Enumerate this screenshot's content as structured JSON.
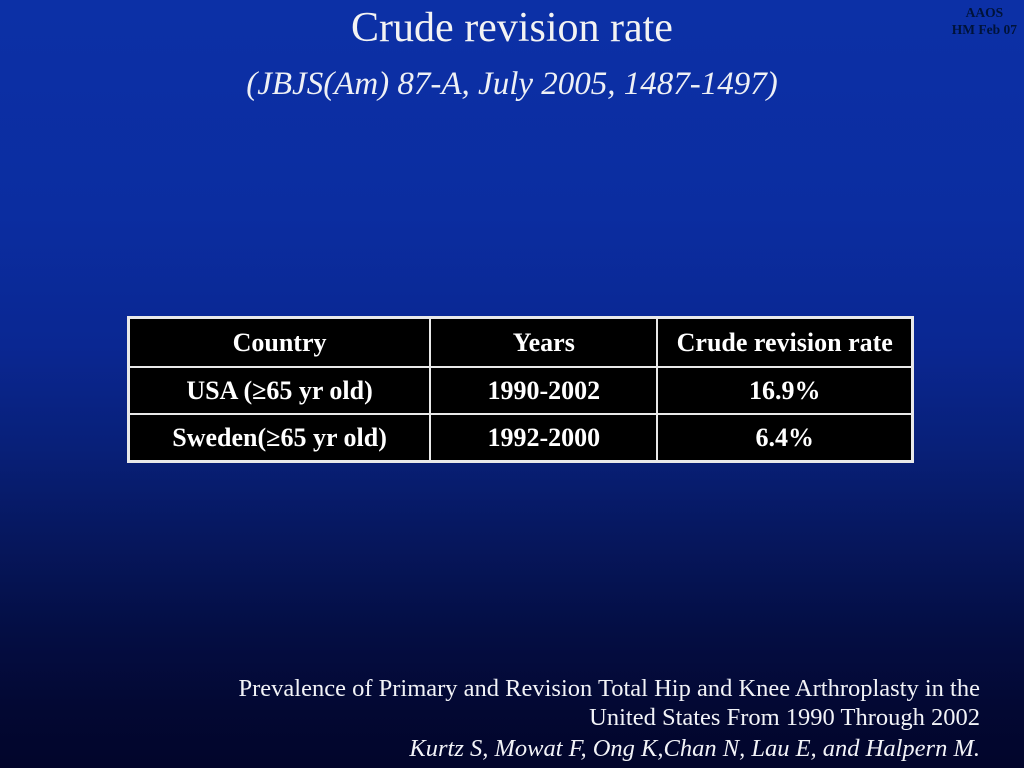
{
  "slide": {
    "title": "Crude revision rate",
    "subtitle": "(JBJS(Am) 87-A, July 2005, 1487-1497)",
    "corner_note": {
      "org": "AAOS",
      "date": "HM Feb 07"
    },
    "citation": {
      "line1": "Prevalence of Primary and Revision Total Hip and Knee Arthroplasty in the",
      "line2": "United States From 1990 Through 2002",
      "authors": "Kurtz S, Mowat F, Ong K,Chan N, Lau E, and Halpern M."
    },
    "colors": {
      "background_top": "#0c30a6",
      "background_bottom": "#02052b",
      "table_cell_background": "#000000",
      "table_border": "#e9e9e9",
      "table_text": "#ffffff",
      "text_primary": "#f5f5f5",
      "corner_note_text": "#001339"
    }
  },
  "chart_data": {
    "type": "table",
    "columns": [
      "Country",
      "Years",
      "Crude revision rate"
    ],
    "rows": [
      [
        "USA (≥65 yr old)",
        "1990-2002",
        "16.9%"
      ],
      [
        "Sweden(≥65 yr old)",
        "1992-2000",
        "6.4%"
      ]
    ]
  }
}
